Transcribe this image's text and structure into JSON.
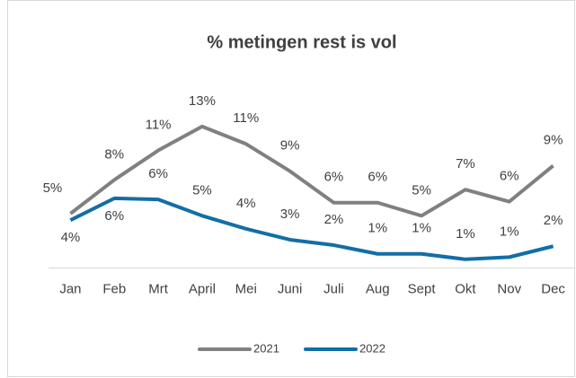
{
  "chart_data": {
    "type": "line",
    "title": "% metingen rest is vol",
    "categories": [
      "Jan",
      "Feb",
      "Mrt",
      "April",
      "Mei",
      "Juni",
      "Juli",
      "Aug",
      "Sept",
      "Okt",
      "Nov",
      "Dec"
    ],
    "series": [
      {
        "name": "2021",
        "color": "#808080",
        "values": [
          5,
          8.1,
          10.8,
          13,
          11.4,
          8.9,
          6,
          6,
          4.8,
          7.2,
          6.1,
          9.4
        ],
        "value_labels": [
          "5%",
          "8%",
          "11%",
          "13%",
          "11%",
          "9%",
          "6%",
          "6%",
          "5%",
          "7%",
          "6%",
          "9%"
        ]
      },
      {
        "name": "2022",
        "color": "#126ea6",
        "values": [
          4.4,
          6.4,
          6.3,
          4.8,
          3.6,
          2.6,
          2.1,
          1.3,
          1.3,
          0.8,
          1.0,
          2.0
        ],
        "value_labels": [
          "4%",
          "6%",
          "6%",
          "5%",
          "4%",
          "3%",
          "2%",
          "1%",
          "1%",
          "1%",
          "1%",
          "2%"
        ]
      }
    ],
    "ylim": [
      0,
      20
    ],
    "legend": "bottom"
  }
}
